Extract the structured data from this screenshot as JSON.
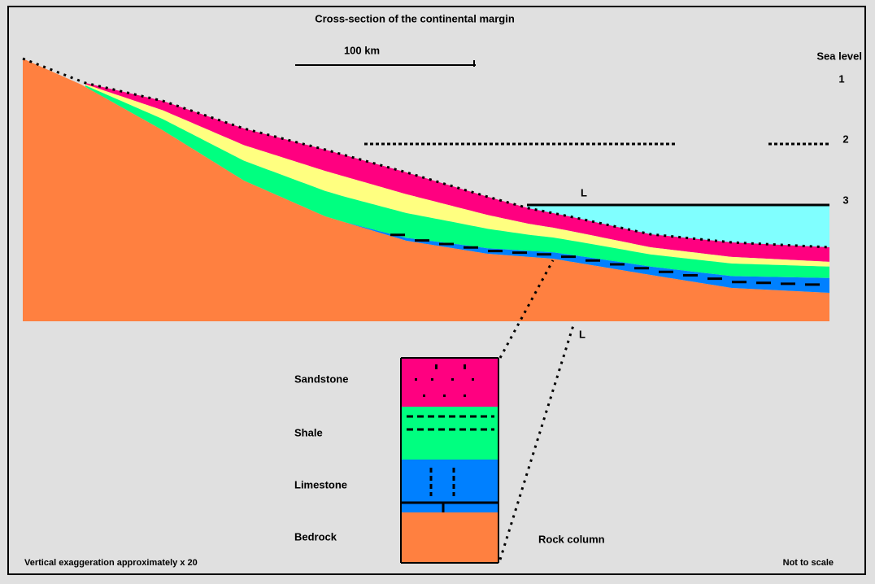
{
  "header": {
    "title": "Cross-section of the continental margin"
  },
  "scale": {
    "label": "100 km"
  },
  "sea_level": {
    "label": "Sea level"
  },
  "markers": [
    "1",
    "2",
    "3"
  ],
  "points": [
    "L",
    "L"
  ],
  "legend": [
    {
      "label": "Sandstone"
    },
    {
      "label": "Shale"
    },
    {
      "label": "Limestone"
    },
    {
      "label": "Bedrock"
    }
  ],
  "column_label": "Rock column",
  "footer": {
    "left": "Vertical exaggeration approximately x 20",
    "right": "Not to scale"
  }
}
